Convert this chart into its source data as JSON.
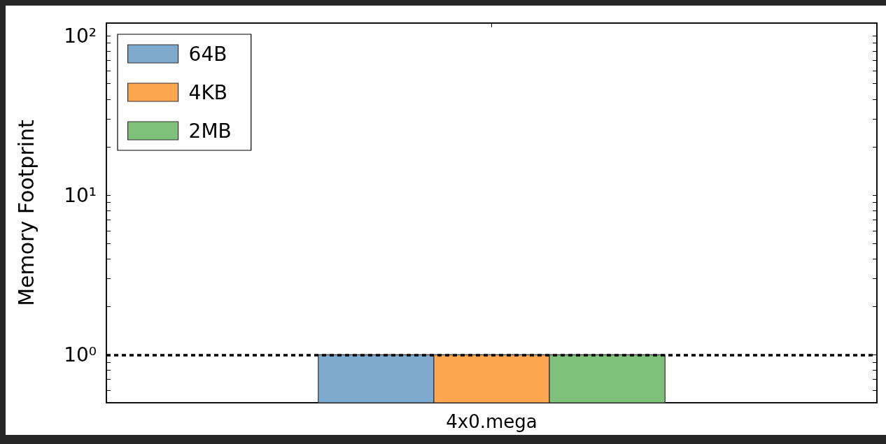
{
  "chart_data": {
    "type": "bar",
    "ylabel": "Memory Footprint",
    "categories": [
      "4x0.mega"
    ],
    "series": [
      {
        "name": "64B",
        "color": "#7eaacd",
        "values": [
          1
        ]
      },
      {
        "name": "4KB",
        "color": "#fea54f",
        "values": [
          1
        ]
      },
      {
        "name": "2MB",
        "color": "#7fc07a",
        "values": [
          1
        ]
      }
    ],
    "log": "y",
    "ylim": [
      0.5,
      120
    ],
    "yticks": [
      {
        "value": 0.6,
        "label": null
      },
      {
        "value": 0.7,
        "label": null
      },
      {
        "value": 0.8,
        "label": null
      },
      {
        "value": 0.9,
        "label": null
      },
      {
        "value": 1,
        "label": "10⁰"
      },
      {
        "value": 2,
        "label": null
      },
      {
        "value": 3,
        "label": null
      },
      {
        "value": 4,
        "label": null
      },
      {
        "value": 5,
        "label": null
      },
      {
        "value": 6,
        "label": null
      },
      {
        "value": 7,
        "label": null
      },
      {
        "value": 8,
        "label": null
      },
      {
        "value": 9,
        "label": null
      },
      {
        "value": 10,
        "label": "10¹"
      },
      {
        "value": 20,
        "label": null
      },
      {
        "value": 30,
        "label": null
      },
      {
        "value": 40,
        "label": null
      },
      {
        "value": 50,
        "label": null
      },
      {
        "value": 60,
        "label": null
      },
      {
        "value": 70,
        "label": null
      },
      {
        "value": 80,
        "label": null
      },
      {
        "value": 90,
        "label": null
      },
      {
        "value": 100,
        "label": "10²"
      }
    ],
    "ref_lines": [
      {
        "axis": "y",
        "value": 1,
        "color": "#000000",
        "line_style": "dashed"
      }
    ],
    "grid": false,
    "legend": "top left"
  }
}
